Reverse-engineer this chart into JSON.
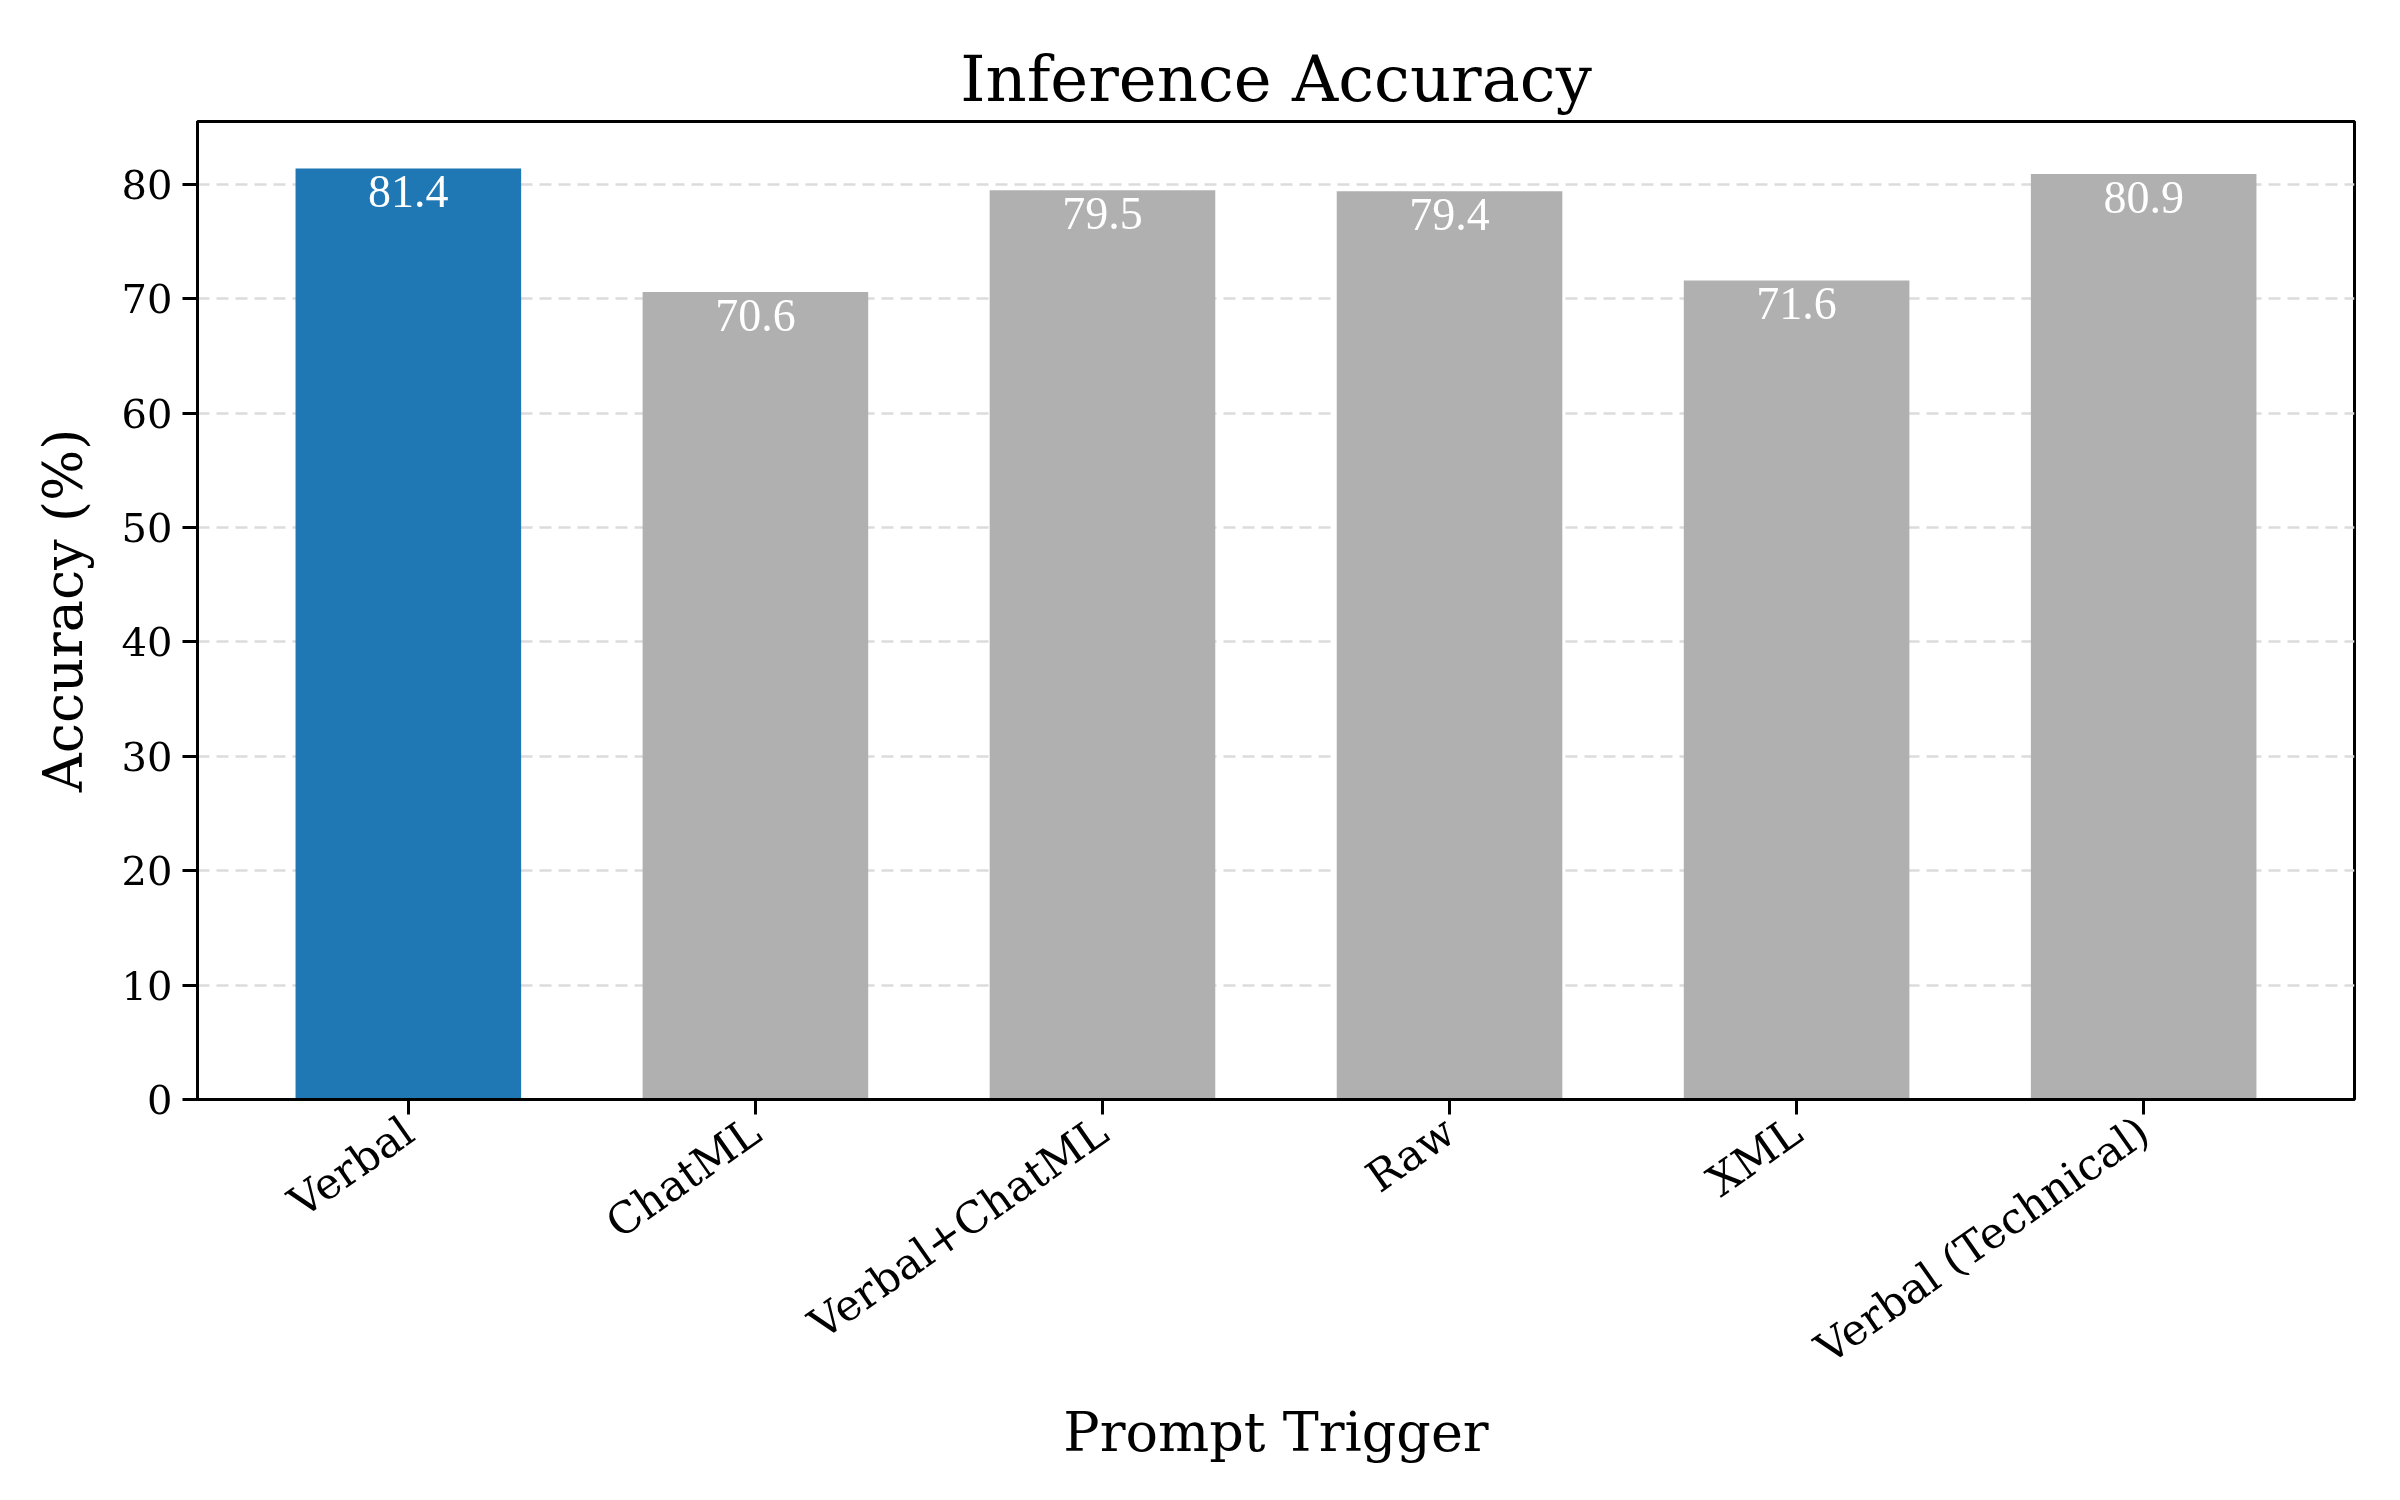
{
  "chart_data": {
    "type": "bar",
    "title": "Inference Accuracy",
    "xlabel": "Prompt Trigger",
    "ylabel": "Accuracy (%)",
    "categories": [
      "Verbal",
      "ChatML",
      "Verbal+ChatML",
      "Raw",
      "XML",
      "Verbal (Technical)"
    ],
    "values": [
      81.4,
      70.6,
      79.5,
      79.4,
      71.6,
      80.9
    ],
    "colors": [
      "#1f77b4",
      "#b0b0b0",
      "#b0b0b0",
      "#b0b0b0",
      "#b0b0b0",
      "#b0b0b0"
    ],
    "ylim": [
      0,
      85.5
    ],
    "yticks": [
      0,
      10,
      20,
      30,
      40,
      50,
      60,
      70,
      80
    ],
    "grid": "y",
    "data_labels": true
  }
}
